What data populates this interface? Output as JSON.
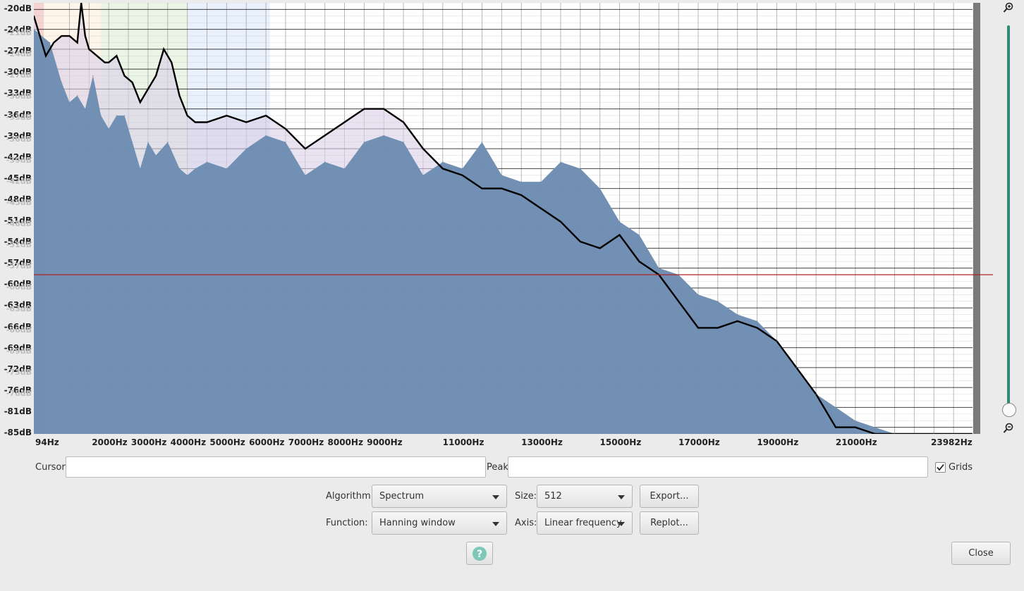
{
  "chart_data": {
    "type": "area",
    "x_axis": {
      "scale": "linear",
      "range": [
        94,
        23982
      ],
      "tick_labels": [
        "94Hz",
        "2000Hz",
        "3000Hz",
        "4000Hz",
        "5000Hz",
        "6000Hz",
        "7000Hz",
        "8000Hz",
        "9000Hz",
        "11000Hz",
        "13000Hz",
        "15000Hz",
        "17000Hz",
        "19000Hz",
        "21000Hz",
        "23982Hz"
      ]
    },
    "y_axis": {
      "range": [
        -85,
        -20
      ],
      "tick_labels": [
        "-20dB",
        "-24dB",
        "-27dB",
        "-30dB",
        "-33dB",
        "-36dB",
        "-39dB",
        "-42dB",
        "-45dB",
        "-48dB",
        "-51dB",
        "-54dB",
        "-57dB",
        "-60dB",
        "-63dB",
        "-66dB",
        "-69dB",
        "-72dB",
        "-76dB",
        "-81dB",
        "-85dB"
      ],
      "faint_tick_labels": [
        "-21dB",
        "-24dB",
        "-27dB",
        "-30dB",
        "-33dB",
        "-36dB",
        "-39dB",
        "-42dB",
        "-45dB",
        "-48dB",
        "-51dB",
        "-57dB",
        "-60dB",
        "-63dB",
        "-66dB",
        "-69dB",
        "-73dB",
        "-78dB"
      ]
    },
    "grid": true,
    "threshold_db": -61,
    "series": [
      {
        "x": [
          94,
          500,
          800,
          1000,
          1200,
          1400,
          1600,
          1800,
          2000,
          2200,
          2400,
          2600,
          2800,
          3000,
          3200,
          3500,
          3800,
          4000,
          4200,
          4500,
          5000,
          5500,
          6000,
          6500,
          7000,
          7500,
          8000,
          8500,
          9000,
          9500,
          10000,
          10500,
          11000,
          11500,
          12000,
          12500,
          13000,
          13500,
          14000,
          14500,
          15000,
          15500,
          16000,
          16500,
          17000,
          17500,
          18000,
          18500,
          19000,
          19500,
          20000,
          20500,
          21000,
          21500,
          22000,
          23000,
          23982
        ],
        "y": [
          -24,
          -26,
          -32,
          -35,
          -34,
          -36,
          -31,
          -37,
          -39,
          -37,
          -37,
          -41,
          -45,
          -41,
          -43,
          -41,
          -45,
          -46,
          -45,
          -44,
          -45,
          -42,
          -40,
          -41,
          -46,
          -44,
          -45,
          -41,
          -40,
          -41,
          -46,
          -44,
          -45,
          -41,
          -46,
          -47,
          -47,
          -44,
          -45,
          -48,
          -53,
          -55,
          -60,
          -61,
          -64,
          -65,
          -67,
          -68,
          -71,
          -75,
          -79,
          -81,
          -83,
          -84,
          -85,
          -85,
          -85
        ]
      },
      {
        "x": [
          94,
          400,
          600,
          800,
          1000,
          1200,
          1300,
          1400,
          1500,
          1700,
          1900,
          2000,
          2200,
          2400,
          2600,
          2800,
          3000,
          3200,
          3400,
          3600,
          3800,
          4000,
          4200,
          4500,
          5000,
          5500,
          6000,
          6500,
          7000,
          7500,
          8000,
          8500,
          9000,
          9500,
          10000,
          10500,
          11000,
          11500,
          12000,
          12500,
          13000,
          13500,
          14000,
          14500,
          15000,
          15500,
          16000,
          16500,
          17000,
          17500,
          18000,
          18500,
          19000,
          19500,
          20000,
          20500,
          21000,
          21500,
          22000,
          23000,
          23982
        ],
        "y": [
          -22,
          -28,
          -26,
          -25,
          -25,
          -26,
          -20,
          -25,
          -27,
          -28,
          -29,
          -29,
          -28,
          -31,
          -32,
          -35,
          -33,
          -31,
          -27,
          -29,
          -34,
          -37,
          -38,
          -38,
          -37,
          -38,
          -37,
          -39,
          -42,
          -40,
          -38,
          -36,
          -36,
          -38,
          -42,
          -45,
          -46,
          -48,
          -48,
          -49,
          -51,
          -53,
          -56,
          -57,
          -55,
          -59,
          -61,
          -65,
          -69,
          -69,
          -68,
          -69,
          -71,
          -75,
          -79,
          -84,
          -84,
          -85,
          -85,
          -85,
          -85
        ]
      }
    ]
  },
  "controls": {
    "cursor_label": "Cursor:",
    "cursor_value": "",
    "peak_label": "Peak:",
    "peak_value": "",
    "grids_label": "Grids",
    "grids_checked": true,
    "algorithm_label": "Algorithm:",
    "algorithm_value": "Spectrum",
    "size_label": "Size:",
    "size_value": "512",
    "export_label": "Export...",
    "function_label": "Function:",
    "function_value": "Hanning window",
    "axis_label": "Axis:",
    "axis_value": "Linear frequency",
    "replot_label": "Replot...",
    "help_label": "?",
    "close_label": "Close"
  },
  "colors": {
    "fill": "#6d8bb3",
    "overlay_fill": "#8ab6b0",
    "curve": "#000000",
    "threshold": "#b22222",
    "accent": "#2f8a78",
    "band_1": "#f4c8c8",
    "band_2": "#fdf3e4",
    "band_3": "#e6f3de",
    "band_4": "#e3eefc"
  },
  "icons": [
    "zoom-in-icon",
    "zoom-out-icon",
    "help-icon",
    "chevron-down-icon",
    "checkmark-icon"
  ]
}
